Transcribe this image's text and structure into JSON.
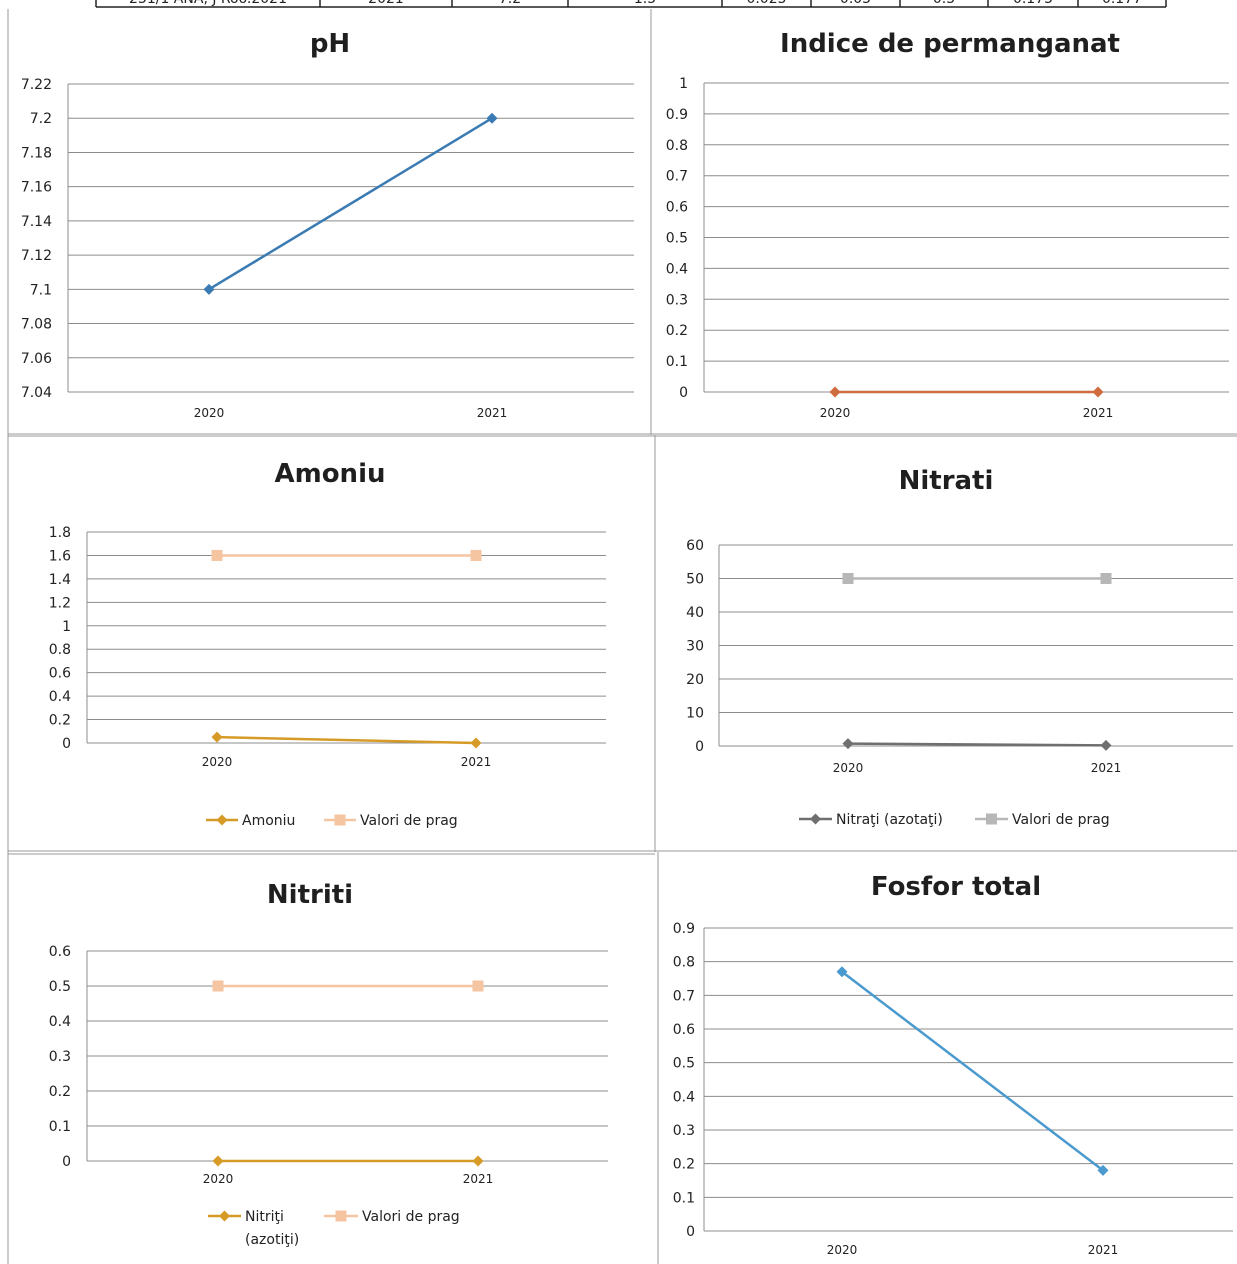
{
  "top_table": {
    "cells": [
      "231/1 ANA, J Roo.2021",
      "2021",
      "7.2",
      "1.5",
      "0.025",
      "0.05",
      "0.5",
      "0.175",
      "0.177"
    ]
  },
  "colors": {
    "blue": "#3b7bb3",
    "orange": "#cf6b3f",
    "gold": "#d69a27",
    "peach": "#f5c4a0",
    "darkgray": "#6f6f6f",
    "lightgray": "#b7b7b7",
    "fosfor_blue": "#4a9ad0",
    "grid": "#8c8c8c"
  },
  "chart_data": [
    {
      "id": "ph",
      "type": "line",
      "title": "pH",
      "categories": [
        "2020",
        "2021"
      ],
      "ylim": [
        7.04,
        7.22
      ],
      "yticks": [
        "7.04",
        "7.06",
        "7.08",
        "7.1",
        "7.12",
        "7.14",
        "7.16",
        "7.18",
        "7.2",
        "7.22"
      ],
      "series": [
        {
          "values": [
            7.1,
            7.2
          ],
          "color": "#3b7bb3",
          "marker": "diamond"
        }
      ],
      "legend": "none",
      "grid": true
    },
    {
      "id": "permanganat",
      "type": "line",
      "title": "Indice de permanganat",
      "categories": [
        "2020",
        "2021"
      ],
      "ylim": [
        0,
        1
      ],
      "yticks": [
        "0",
        "0.1",
        "0.2",
        "0.3",
        "0.4",
        "0.5",
        "0.6",
        "0.7",
        "0.8",
        "0.9",
        "1"
      ],
      "series": [
        {
          "values": [
            0,
            0
          ],
          "color": "#cf6b3f",
          "marker": "diamond"
        }
      ],
      "legend": "none",
      "grid": true
    },
    {
      "id": "amoniu",
      "type": "line",
      "title": "Amoniu",
      "categories": [
        "2020",
        "2021"
      ],
      "ylim": [
        0,
        1.8
      ],
      "yticks": [
        "0",
        "0.2",
        "0.4",
        "0.6",
        "0.8",
        "1",
        "1.2",
        "1.4",
        "1.6",
        "1.8"
      ],
      "series": [
        {
          "name": "Amoniu",
          "values": [
            0.05,
            0
          ],
          "color": "#d69a27",
          "marker": "diamond"
        },
        {
          "name": "Valori de prag",
          "values": [
            1.6,
            1.6
          ],
          "color": "#f5c4a0",
          "marker": "square"
        }
      ],
      "legend": "bottom",
      "grid": true
    },
    {
      "id": "nitrati",
      "type": "line",
      "title": "Nitrati",
      "categories": [
        "2020",
        "2021"
      ],
      "ylim": [
        0,
        60
      ],
      "yticks": [
        "0",
        "10",
        "20",
        "30",
        "40",
        "50",
        "60"
      ],
      "series": [
        {
          "name": "Nitraţi (azotaţi)",
          "values": [
            0.7,
            0.2
          ],
          "color": "#6f6f6f",
          "marker": "diamond"
        },
        {
          "name": "Valori de prag",
          "values": [
            50,
            50
          ],
          "color": "#b7b7b7",
          "marker": "square"
        }
      ],
      "legend": "bottom",
      "grid": true
    },
    {
      "id": "nitriti",
      "type": "line",
      "title": "Nitriti",
      "categories": [
        "2020",
        "2021"
      ],
      "ylim": [
        0,
        0.6
      ],
      "yticks": [
        "0",
        "0.1",
        "0.2",
        "0.3",
        "0.4",
        "0.5",
        "0.6"
      ],
      "series": [
        {
          "name": "Nitriţi\n(azotiţi)",
          "values": [
            0,
            0
          ],
          "color": "#d69a27",
          "marker": "diamond"
        },
        {
          "name": "Valori de prag",
          "values": [
            0.5,
            0.5
          ],
          "color": "#f5c4a0",
          "marker": "square"
        }
      ],
      "legend": "bottom",
      "grid": true
    },
    {
      "id": "fosfor",
      "type": "line",
      "title": "Fosfor total",
      "categories": [
        "2020",
        "2021"
      ],
      "ylim": [
        0,
        0.9
      ],
      "yticks": [
        "0",
        "0.1",
        "0.2",
        "0.3",
        "0.4",
        "0.5",
        "0.6",
        "0.7",
        "0.8",
        "0.9"
      ],
      "series": [
        {
          "values": [
            0.77,
            0.18
          ],
          "color": "#4a9ad0",
          "marker": "diamond"
        }
      ],
      "legend": "none",
      "grid": true
    }
  ]
}
